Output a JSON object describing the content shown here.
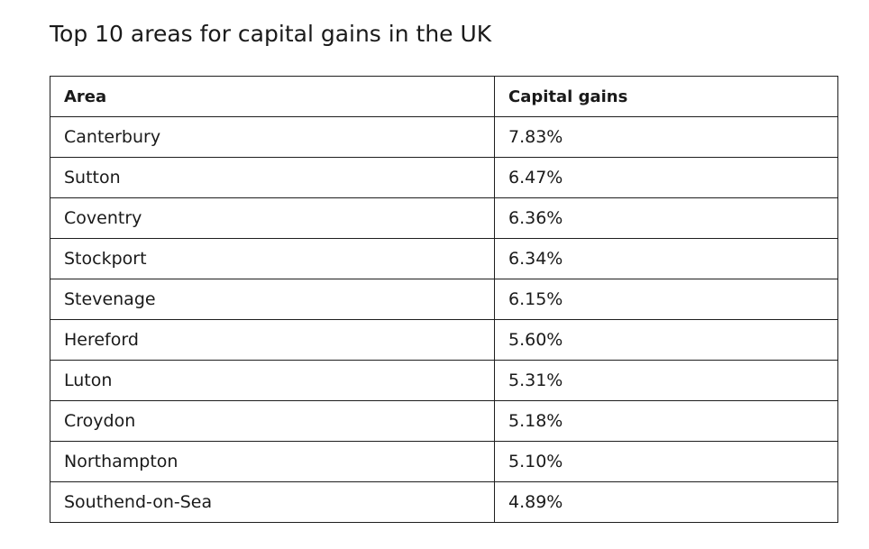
{
  "title": "Top 10 areas for capital gains in the UK",
  "table": {
    "headers": [
      "Area",
      "Capital gains"
    ],
    "rows": [
      [
        "Canterbury",
        "7.83%"
      ],
      [
        "Sutton",
        "6.47%"
      ],
      [
        "Coventry",
        "6.36%"
      ],
      [
        "Stockport",
        "6.34%"
      ],
      [
        "Stevenage",
        "6.15%"
      ],
      [
        "Hereford",
        "5.60%"
      ],
      [
        "Luton",
        "5.31%"
      ],
      [
        "Croydon",
        "5.18%"
      ],
      [
        "Northampton",
        "5.10%"
      ],
      [
        "Southend-on-Sea",
        "4.89%"
      ]
    ]
  }
}
